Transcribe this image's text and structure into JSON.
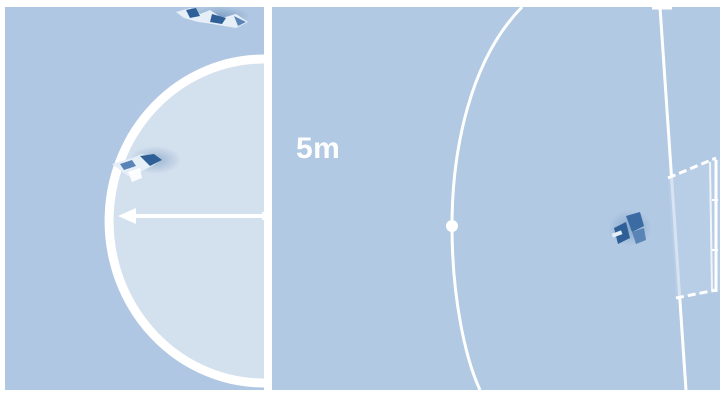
{
  "diagram": {
    "distance_label": "5m"
  },
  "colors": {
    "court": "#afc7e2",
    "court_light": "#b6cde6",
    "semicircle_fill": "#d3e0ee",
    "line": "#ffffff",
    "player": "#2f5f97",
    "player_light": "#7ea6d2"
  },
  "icons": {
    "left_player": "player-figure-icon",
    "right_player": "goalkeeper-figure-icon",
    "top_players": "player-figure-icon",
    "goal": "goal-net-icon",
    "arrow": "arrow-left-icon"
  }
}
